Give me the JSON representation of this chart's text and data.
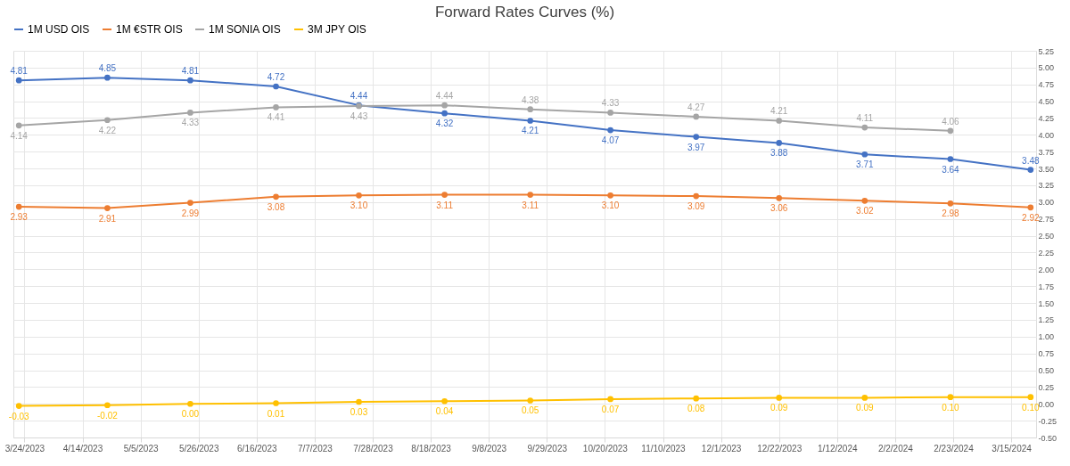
{
  "chart_data": {
    "type": "line",
    "title": "Forward Rates Curves (%)",
    "x": [
      "2023-03-22",
      "2023-04-23",
      "2023-05-23",
      "2023-06-23",
      "2023-07-23",
      "2023-08-23",
      "2023-09-23",
      "2023-10-22",
      "2023-11-22",
      "2023-12-22",
      "2024-01-22",
      "2024-02-22",
      "2024-03-22"
    ],
    "series": [
      {
        "name": "1M USD OIS",
        "color": "#4472c4",
        "values": [
          4.81,
          4.85,
          4.81,
          4.72,
          4.44,
          4.32,
          4.21,
          4.07,
          3.97,
          3.88,
          3.71,
          3.64,
          3.48
        ],
        "value_labels": [
          "4.81",
          "4.85",
          "4.81",
          "4.72",
          "4.44",
          "4.32",
          "4.21",
          "4.07",
          "3.97",
          "3.88",
          "3.71",
          "3.64",
          "3.48"
        ]
      },
      {
        "name": "1M €STR OIS",
        "color": "#ed7d31",
        "values": [
          2.93,
          2.91,
          2.99,
          3.08,
          3.1,
          3.11,
          3.11,
          3.1,
          3.09,
          3.06,
          3.02,
          2.98,
          2.92
        ],
        "value_labels": [
          "2.93",
          "2.91",
          "2.99",
          "3.08",
          "3.10",
          "3.11",
          "3.11",
          "3.10",
          "3.09",
          "3.06",
          "3.02",
          "2.98",
          "2.92"
        ]
      },
      {
        "name": "1M SONIA OIS",
        "color": "#a5a5a5",
        "values": [
          4.14,
          4.22,
          4.33,
          4.41,
          4.43,
          4.44,
          4.38,
          4.33,
          4.27,
          4.21,
          4.11,
          4.06,
          null
        ],
        "value_labels": [
          "4.14",
          "4.22",
          "4.33",
          "4.41",
          "4.43",
          "4.44",
          "4.38",
          "4.33",
          "4.27",
          "4.21",
          "4.11",
          "4.06",
          null
        ]
      },
      {
        "name": "3M JPY OIS",
        "color": "#ffc000",
        "values": [
          -0.03,
          -0.02,
          0.0,
          0.01,
          0.03,
          0.04,
          0.05,
          0.07,
          0.08,
          0.09,
          0.09,
          0.1,
          0.1
        ],
        "value_labels": [
          "-0.03",
          "-0.02",
          "0.00",
          "0.01",
          "0.03",
          "0.04",
          "0.05",
          "0.07",
          "0.08",
          "0.09",
          "0.09",
          "0.10",
          "0.10"
        ]
      }
    ],
    "xlim": [
      "2023-03-20",
      "2024-03-24"
    ],
    "xticks": [
      {
        "value": "2023-03-24",
        "label": "3/24/2023"
      },
      {
        "value": "2023-04-14",
        "label": "4/14/2023"
      },
      {
        "value": "2023-05-05",
        "label": "5/5/2023"
      },
      {
        "value": "2023-05-26",
        "label": "5/26/2023"
      },
      {
        "value": "2023-06-16",
        "label": "6/16/2023"
      },
      {
        "value": "2023-07-07",
        "label": "7/7/2023"
      },
      {
        "value": "2023-07-28",
        "label": "7/28/2023"
      },
      {
        "value": "2023-08-18",
        "label": "8/18/2023"
      },
      {
        "value": "2023-09-08",
        "label": "9/8/2023"
      },
      {
        "value": "2023-09-29",
        "label": "9/29/2023"
      },
      {
        "value": "2023-10-20",
        "label": "10/20/2023"
      },
      {
        "value": "2023-11-10",
        "label": "11/10/2023"
      },
      {
        "value": "2023-12-01",
        "label": "12/1/2023"
      },
      {
        "value": "2023-12-22",
        "label": "12/22/2023"
      },
      {
        "value": "2024-01-12",
        "label": "1/12/2024"
      },
      {
        "value": "2024-02-02",
        "label": "2/2/2024"
      },
      {
        "value": "2024-02-23",
        "label": "2/23/2024"
      },
      {
        "value": "2024-03-15",
        "label": "3/15/2024"
      }
    ],
    "ylim": [
      -0.5,
      5.25
    ],
    "yticks": [
      {
        "value": -0.5,
        "label": "-0.50"
      },
      {
        "value": -0.25,
        "label": "-0.25"
      },
      {
        "value": 0,
        "label": "0.00"
      },
      {
        "value": 0.25,
        "label": "0.25"
      },
      {
        "value": 0.5,
        "label": "0.50"
      },
      {
        "value": 0.75,
        "label": "0.75"
      },
      {
        "value": 1,
        "label": "1.00"
      },
      {
        "value": 1.25,
        "label": "1.25"
      },
      {
        "value": 1.5,
        "label": "1.50"
      },
      {
        "value": 1.75,
        "label": "1.75"
      },
      {
        "value": 2,
        "label": "2.00"
      },
      {
        "value": 2.25,
        "label": "2.25"
      },
      {
        "value": 2.5,
        "label": "2.50"
      },
      {
        "value": 2.75,
        "label": "2.75"
      },
      {
        "value": 3,
        "label": "3.00"
      },
      {
        "value": 3.25,
        "label": "3.25"
      },
      {
        "value": 3.5,
        "label": "3.50"
      },
      {
        "value": 3.75,
        "label": "3.75"
      },
      {
        "value": 4,
        "label": "4.00"
      },
      {
        "value": 4.25,
        "label": "4.25"
      },
      {
        "value": 4.5,
        "label": "4.50"
      },
      {
        "value": 4.75,
        "label": "4.75"
      },
      {
        "value": 5,
        "label": "5.00"
      },
      {
        "value": 5.25,
        "label": "5.25"
      }
    ],
    "grid": true,
    "legend": "top",
    "marker": "circle",
    "line_style": "solid"
  }
}
